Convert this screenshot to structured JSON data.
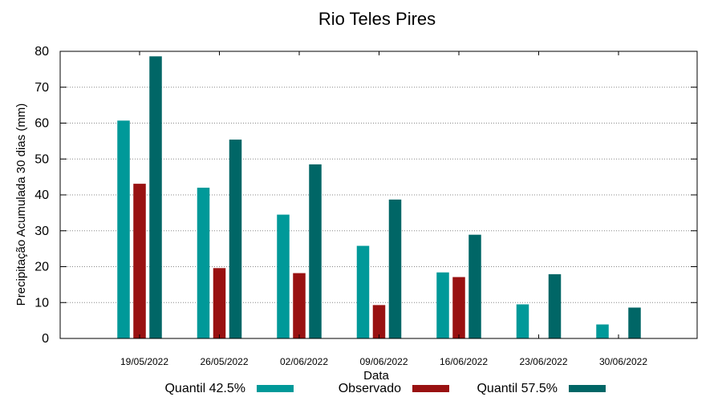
{
  "chart_data": {
    "type": "bar",
    "title": "Rio Teles Pires",
    "xlabel": "Data",
    "ylabel": "Precipitação Acumulada 30 dias (mm)",
    "ylim": [
      0,
      80
    ],
    "yticks": [
      0,
      10,
      20,
      30,
      40,
      50,
      60,
      70,
      80
    ],
    "grid": true,
    "legend_position": "bottom",
    "categories": [
      "19/05/2022",
      "26/05/2022",
      "02/06/2022",
      "09/06/2022",
      "16/06/2022",
      "23/06/2022",
      "30/06/2022"
    ],
    "series": [
      {
        "name": "Quantil 42.5%",
        "color": "#009999",
        "values": [
          60.7,
          42.0,
          34.5,
          25.8,
          18.4,
          9.5,
          3.9
        ]
      },
      {
        "name": "Observado",
        "color": "#991111",
        "values": [
          43.1,
          19.6,
          18.2,
          9.3,
          17.1,
          null,
          null
        ]
      },
      {
        "name": "Quantil 57.5%",
        "color": "#006666",
        "values": [
          78.6,
          55.4,
          48.5,
          38.7,
          28.9,
          17.9,
          8.6
        ]
      }
    ]
  }
}
